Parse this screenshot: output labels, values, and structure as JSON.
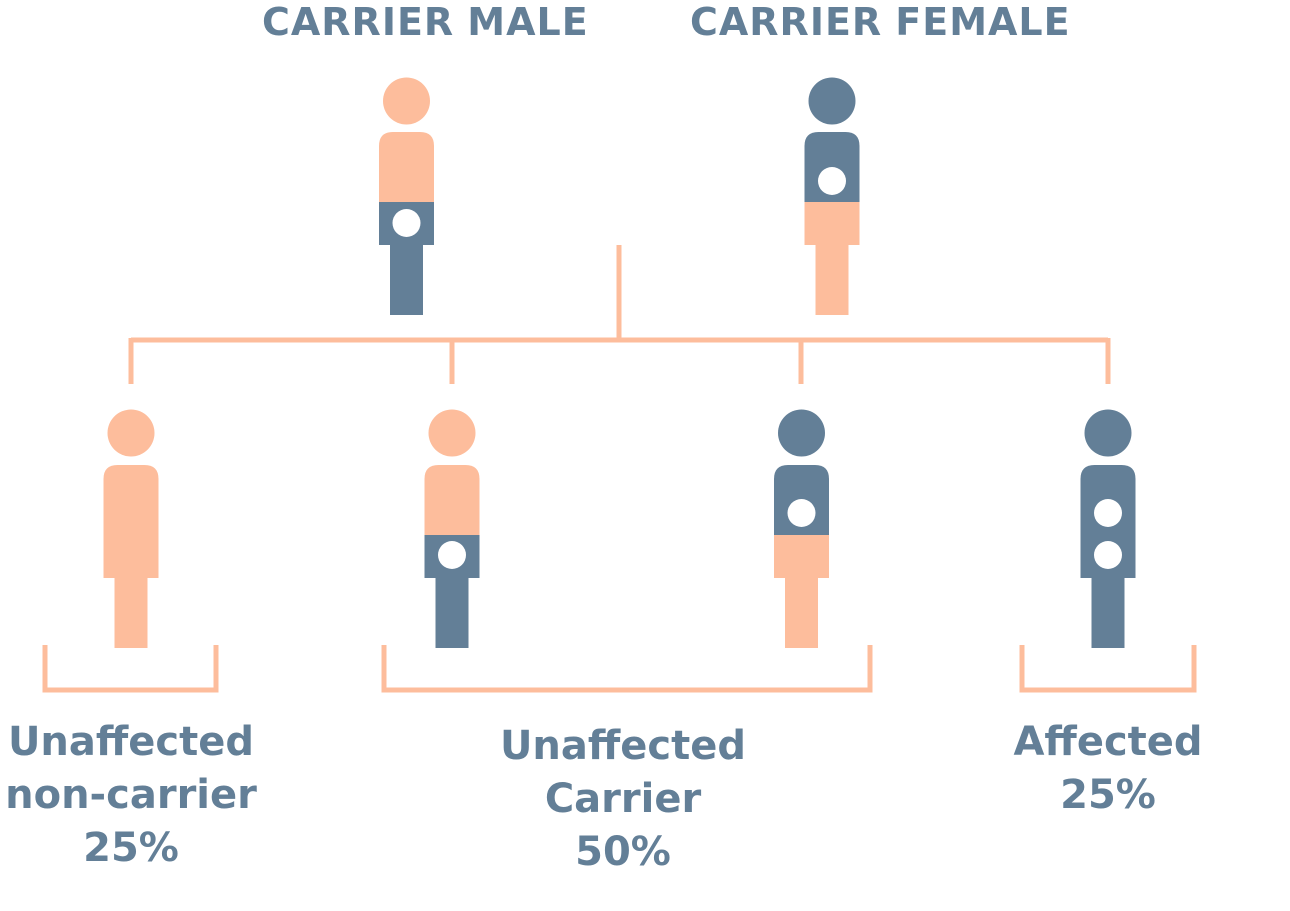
{
  "parents": {
    "male_title_light": "CARRIER",
    "male_title_heavy": "MALE",
    "female_title_light": "CARRIER",
    "female_title_heavy": "FEMALE"
  },
  "outcomes": [
    {
      "line1": "Unaffected",
      "line2": "non-carrier",
      "percent": "25%"
    },
    {
      "line1": "Unaffected",
      "line2": "Carrier",
      "percent": "50%"
    },
    {
      "line1": "Affected",
      "percent": "25%"
    }
  ],
  "colors": {
    "peach": "#fdbd9c",
    "slate": "#637f97",
    "marker": "#ffffff"
  }
}
